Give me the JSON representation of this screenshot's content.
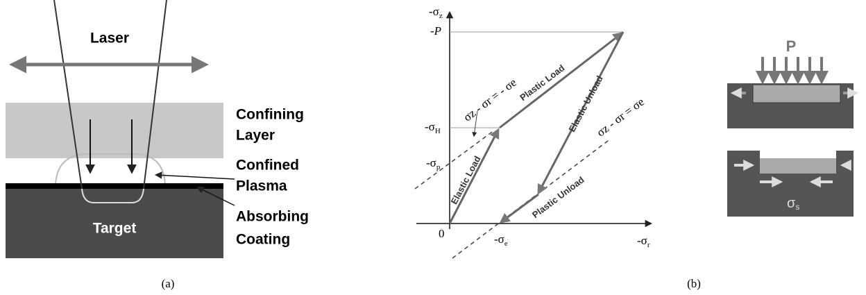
{
  "panel_a": {
    "labels": {
      "laser": "Laser",
      "confining_1": "Confining",
      "confining_2": "Layer",
      "plasma_1": "Confined",
      "plasma_2": "Plasma",
      "coating_1": "Absorbing",
      "coating_2": "Coating",
      "target": "Target"
    },
    "caption": "(a)"
  },
  "panel_b": {
    "axis_y": {
      "main": "-σ",
      "sub": "z"
    },
    "axis_x": {
      "main": "-σ",
      "sub": "r"
    },
    "p_level": "-P",
    "h_level": {
      "main": "-σ",
      "sub": "H"
    },
    "p0_level": {
      "main": "-σ",
      "sub": "p"
    },
    "origin": "0",
    "e_level": {
      "main": "-σ",
      "sub": "e"
    },
    "paths": {
      "plastic_load": "Plastic Load",
      "elastic_load": "Elastic Load",
      "elastic_unload": "Elastic Unload",
      "plastic_unload": "Plastic Unload"
    },
    "yield_upper": "σz - σr = - σe",
    "yield_lower": "σz - σr = σe",
    "caption": "(b)"
  },
  "panel_c": {
    "load": "P",
    "stress": {
      "main": "σ",
      "sub": "s"
    }
  }
}
